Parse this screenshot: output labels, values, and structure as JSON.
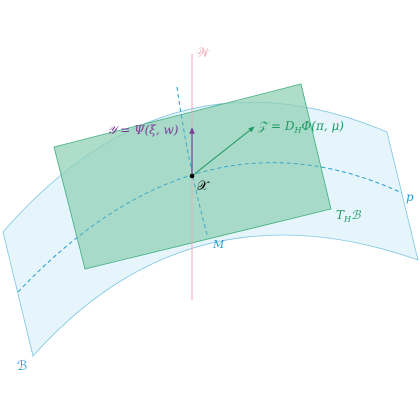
{
  "labels": {
    "W": "𝒲",
    "Y": "𝒴 = Ψ(ξ, w)",
    "Z": "𝒵 = D",
    "Z_sub": "H",
    "Z_tail": "Φ(π, μ)",
    "X": "𝒳",
    "p": "p",
    "M": "M",
    "T": "T",
    "T_sub": "H",
    "T_tail": "ℬ",
    "B": "ℬ"
  },
  "colors": {
    "manifold_fill": "#e3f3fb",
    "manifold_stroke": "#7fc7e3",
    "plane_fill": "#8fd0b4",
    "plane_stroke": "#3fae7e",
    "axis_W": "#f2aab8",
    "label_W": "#f4a7b9",
    "purple": "#7b3f98",
    "green": "#1f9a63",
    "blue": "#2a9fd0",
    "black": "#000000"
  }
}
